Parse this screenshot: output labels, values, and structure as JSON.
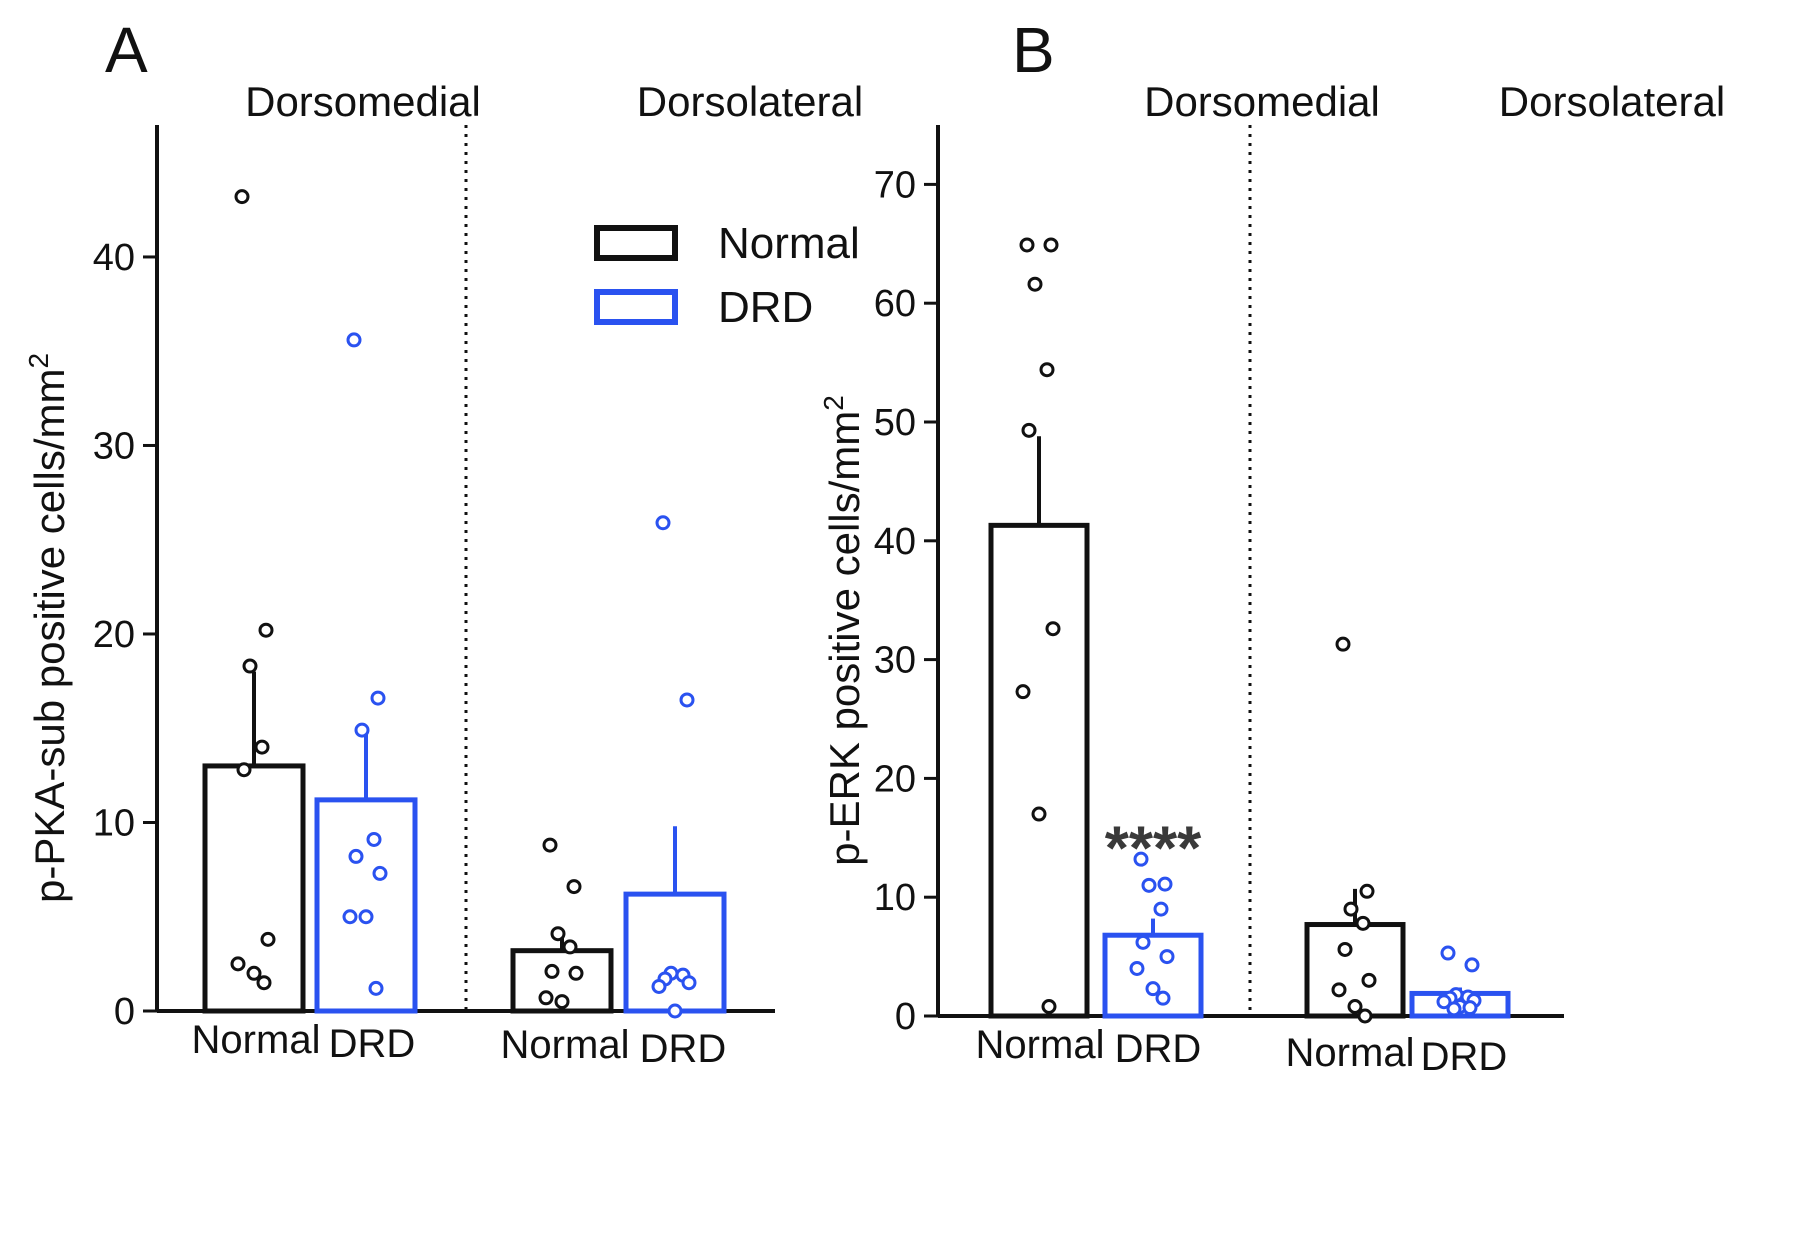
{
  "colors": {
    "normal": "#111111",
    "drd": "#2a52f0",
    "axis": "#111111",
    "sig": "#3a3a3a"
  },
  "legend": {
    "items": [
      {
        "label": "Normal",
        "series": "normal"
      },
      {
        "label": "DRD",
        "series": "drd"
      }
    ]
  },
  "chart_data": [
    {
      "type": "bar",
      "panel_label": "A",
      "ylabel": "p-PKA-sub positive cells/mm",
      "ylabel_sup": "2",
      "ylim": [
        0,
        47
      ],
      "yticks": [
        0,
        10,
        20,
        30,
        40
      ],
      "regions": [
        {
          "name": "Dorsomedial",
          "bars": [
            {
              "group": "Normal",
              "series": "normal",
              "mean": 13.0,
              "sem": 5.0,
              "points": [
                43.2,
                20.2,
                18.3,
                14.0,
                12.8,
                3.8,
                2.5,
                2.0,
                1.5
              ]
            },
            {
              "group": "DRD",
              "series": "drd",
              "mean": 11.2,
              "sem": 3.7,
              "points": [
                35.6,
                16.6,
                14.9,
                9.1,
                8.2,
                7.3,
                5.0,
                5.0,
                1.2
              ]
            }
          ]
        },
        {
          "name": "Dorsolateral",
          "bars": [
            {
              "group": "Normal",
              "series": "normal",
              "mean": 3.2,
              "sem": 1.0,
              "points": [
                8.8,
                6.6,
                4.1,
                3.4,
                2.1,
                2.0,
                0.7,
                0.5
              ]
            },
            {
              "group": "DRD",
              "series": "drd",
              "mean": 6.2,
              "sem": 3.6,
              "points": [
                25.9,
                16.5,
                2.0,
                1.9,
                1.7,
                1.5,
                1.3,
                0.0
              ]
            }
          ]
        }
      ]
    },
    {
      "type": "bar",
      "panel_label": "B",
      "ylabel": "p-ERK positive cells/mm",
      "ylabel_sup": "2",
      "ylim": [
        0,
        75
      ],
      "yticks": [
        0,
        10,
        20,
        30,
        40,
        50,
        60,
        70
      ],
      "significance": {
        "label": "****",
        "region": "Dorsomedial",
        "group": "DRD"
      },
      "regions": [
        {
          "name": "Dorsomedial",
          "bars": [
            {
              "group": "Normal",
              "series": "normal",
              "mean": 41.3,
              "sem": 7.5,
              "points": [
                64.9,
                64.9,
                61.6,
                54.4,
                49.3,
                32.6,
                27.3,
                17.0,
                0.8
              ]
            },
            {
              "group": "DRD",
              "series": "drd",
              "mean": 6.8,
              "sem": 1.4,
              "points": [
                13.2,
                11.1,
                11.0,
                9.0,
                6.2,
                5.0,
                4.0,
                2.3,
                1.5
              ]
            }
          ]
        },
        {
          "name": "Dorsolateral",
          "bars": [
            {
              "group": "Normal",
              "series": "normal",
              "mean": 7.7,
              "sem": 3.0,
              "points": [
                31.3,
                10.5,
                9.0,
                7.8,
                5.6,
                3.0,
                2.2,
                0.8,
                0.0
              ]
            },
            {
              "group": "DRD",
              "series": "drd",
              "mean": 1.9,
              "sem": 0.5,
              "points": [
                5.3,
                4.3,
                1.8,
                1.6,
                1.5,
                1.3,
                1.2,
                0.8,
                0.7,
                0.6
              ]
            }
          ]
        }
      ]
    }
  ]
}
